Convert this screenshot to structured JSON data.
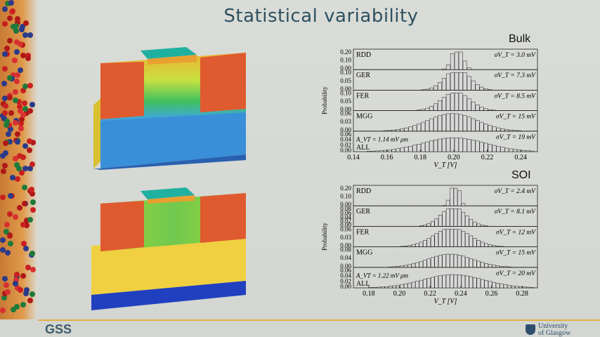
{
  "title": "Statistical variability",
  "footer": {
    "logo": "GSS",
    "university_line1": "University",
    "university_line2": "of Glasgow"
  },
  "chart_data": [
    {
      "type": "bar",
      "title": "Bulk",
      "xlabel": "V_T [V]",
      "ylabel": "Probability",
      "xlim": [
        0.14,
        0.25
      ],
      "xticks": [
        "0.14",
        "0.16",
        "0.18",
        "0.20",
        "0.22",
        "0.24"
      ],
      "panels": [
        {
          "name": "RDD",
          "sigma": "σV_T = 3.0 mV",
          "yticks": [
            "0.20",
            "0.10",
            "0.00"
          ],
          "ymax": 0.2,
          "center": 0.201,
          "sigma_v": 0.003
        },
        {
          "name": "GER",
          "sigma": "σV_T = 7.3 mV",
          "yticks": [
            "0.10",
            "0.05",
            "0.00"
          ],
          "ymax": 0.1,
          "center": 0.201,
          "sigma_v": 0.0073
        },
        {
          "name": "FER",
          "sigma": "σV_T = 8.5 mV",
          "yticks": [
            "0.10",
            "0.05",
            "0.00"
          ],
          "ymax": 0.1,
          "center": 0.2,
          "sigma_v": 0.0085
        },
        {
          "name": "MGG",
          "sigma": "σV_T = 15 mV",
          "yticks": [
            "0.06",
            "0.03",
            "0.00"
          ],
          "ymax": 0.06,
          "center": 0.198,
          "sigma_v": 0.015
        },
        {
          "name": "ALL",
          "sigma": "σV_T = 19 mV",
          "extra": "A_VT = 1.14 mV μm",
          "yticks": [
            "0.06",
            "0.04",
            "0.02",
            "0.00"
          ],
          "ymax": 0.06,
          "center": 0.199,
          "sigma_v": 0.019
        }
      ]
    },
    {
      "type": "bar",
      "title": "SOI",
      "xlabel": "V_T [V]",
      "ylabel": "Probability",
      "xlim": [
        0.17,
        0.29
      ],
      "xticks": [
        "0.18",
        "0.20",
        "0.22",
        "0.24",
        "0.26",
        "0.28"
      ],
      "panels": [
        {
          "name": "RDD",
          "sigma": "σV_T = 2.4 mV",
          "yticks": [
            "0.20",
            "0.10",
            "0.00"
          ],
          "ymax": 0.2,
          "center": 0.235,
          "sigma_v": 0.0024
        },
        {
          "name": "GER",
          "sigma": "σV_T = 8.1 mV",
          "yticks": [
            "0.08",
            "0.06",
            "0.04",
            "0.02",
            "0.00"
          ],
          "ymax": 0.1,
          "center": 0.234,
          "sigma_v": 0.0081
        },
        {
          "name": "FER",
          "sigma": "σV_T = 12 mV",
          "yticks": [
            "0.06",
            "0.03",
            "0.00"
          ],
          "ymax": 0.07,
          "center": 0.233,
          "sigma_v": 0.012
        },
        {
          "name": "MGG",
          "sigma": "σV_T = 15 mV",
          "yticks": [
            "0.08",
            "0.04",
            "0.00"
          ],
          "ymax": 0.08,
          "center": 0.232,
          "sigma_v": 0.015
        },
        {
          "name": "ALL",
          "sigma": "σV_T = 20 mV",
          "extra": "A_VT = 1.22 mV μm",
          "yticks": [
            "0.06",
            "0.04",
            "0.02",
            "0.00"
          ],
          "ymax": 0.06,
          "center": 0.234,
          "sigma_v": 0.02
        }
      ]
    }
  ]
}
